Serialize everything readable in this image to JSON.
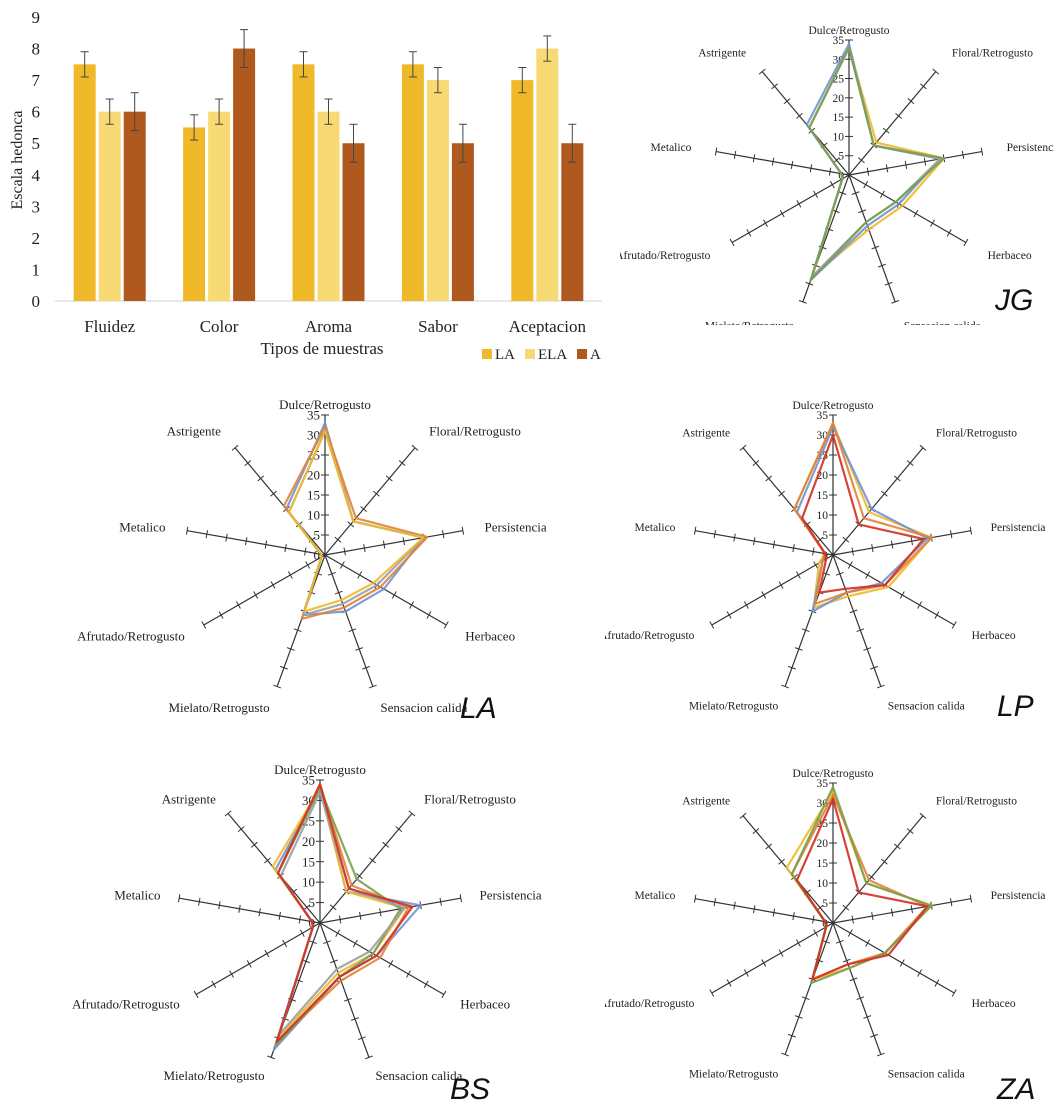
{
  "chart_data": [
    {
      "type": "bar",
      "categories": [
        "Fluidez",
        "Color",
        "Aroma",
        "Sabor",
        "Aceptacion"
      ],
      "xlabel": "Tipos de muestras",
      "ylabel": "Escala hedonca",
      "ylim": [
        0,
        9
      ],
      "yticks": [
        0,
        1,
        2,
        3,
        4,
        5,
        6,
        7,
        8,
        9
      ],
      "grid": false,
      "legend_position": "bottom-right",
      "series": [
        {
          "name": "LA",
          "color": "#f0b92a",
          "values": [
            7.5,
            5.5,
            7.5,
            7.5,
            7.0
          ],
          "errors": [
            0.4,
            0.4,
            0.4,
            0.4,
            0.4
          ]
        },
        {
          "name": "ELA",
          "color": "#f7da74",
          "values": [
            6.0,
            6.0,
            6.0,
            7.0,
            8.0
          ],
          "errors": [
            0.4,
            0.4,
            0.4,
            0.4,
            0.4
          ]
        },
        {
          "name": "A",
          "color": "#b0591f",
          "values": [
            6.0,
            8.0,
            5.0,
            5.0,
            5.0
          ],
          "errors": [
            0.6,
            0.6,
            0.6,
            0.6,
            0.6
          ]
        }
      ]
    },
    {
      "type": "radar",
      "tag": "JG",
      "axes": [
        "Dulce/Retrogusto",
        "Floral/Retrogusto",
        "Persistencia",
        "Herbaceo",
        "Sensacion calida",
        "Mielato/Retrogusto",
        "Afrutado/Retrogusto",
        "Metalico",
        "Astrigente"
      ],
      "rticks": [
        0,
        5,
        10,
        15,
        20,
        25,
        30,
        35
      ],
      "rmax": 35,
      "series": [
        {
          "color": "#f0b92a",
          "values": [
            33,
            11,
            25,
            16,
            15,
            28,
            2,
            2,
            16
          ]
        },
        {
          "color": "#6f93d1",
          "values": [
            34,
            10,
            24,
            15,
            14,
            29,
            2,
            2,
            17
          ]
        },
        {
          "color": "#9aa0a6",
          "values": [
            33,
            10,
            24,
            14,
            13,
            28,
            2,
            2,
            16
          ]
        },
        {
          "color": "#7a9f4c",
          "values": [
            33,
            10,
            25,
            14,
            13,
            29,
            2,
            2,
            16
          ]
        }
      ]
    },
    {
      "type": "radar",
      "tag": "LA",
      "axes": [
        "Dulce/Retrogusto",
        "Floral/Retrogusto",
        "Persistencia",
        "Herbaceo",
        "Sensacion calida",
        "Mielato/Retrogusto",
        "Afrutado/Retrogusto",
        "Metalico",
        "Astrigente"
      ],
      "rticks": [
        0,
        5,
        10,
        15,
        20,
        25,
        30,
        35
      ],
      "rmax": 35,
      "series": [
        {
          "color": "#6f93d1",
          "values": [
            33,
            11,
            25,
            17,
            15,
            16,
            1,
            1,
            15
          ]
        },
        {
          "color": "#e0823a",
          "values": [
            32,
            12,
            26,
            16,
            14,
            17,
            1,
            1,
            16
          ]
        },
        {
          "color": "#9aa0a6",
          "values": [
            31,
            11,
            25,
            15,
            13,
            16,
            1,
            1,
            14
          ]
        },
        {
          "color": "#f0b92a",
          "values": [
            31,
            11,
            25,
            14,
            12,
            15,
            1,
            1,
            14
          ]
        }
      ]
    },
    {
      "type": "radar",
      "tag": "LP",
      "axes": [
        "Dulce/Retrogusto",
        "Floral/Retrogusto",
        "Persistencia",
        "Herbaceo",
        "Sensacion calida",
        "Mielato/Retrogusto",
        "Afrutado/Retrogusto",
        "Metalico",
        "Astrigente"
      ],
      "rticks": [
        0,
        5,
        10,
        15,
        20,
        25,
        30,
        35
      ],
      "rmax": 35,
      "series": [
        {
          "color": "#f0b92a",
          "values": [
            33,
            14,
            25,
            16,
            11,
            14,
            4,
            2,
            15
          ]
        },
        {
          "color": "#6f93d1",
          "values": [
            32,
            15,
            24,
            14,
            10,
            15,
            3,
            2,
            14
          ]
        },
        {
          "color": "#e0823a",
          "values": [
            33,
            12,
            25,
            15,
            10,
            13,
            3,
            2,
            15
          ]
        },
        {
          "color": "#d42f22",
          "values": [
            30,
            10,
            23,
            15,
            9,
            10,
            2,
            2,
            12
          ]
        }
      ]
    },
    {
      "type": "radar",
      "tag": "BS",
      "axes": [
        "Dulce/Retrogusto",
        "Floral/Retrogusto",
        "Persistencia",
        "Herbaceo",
        "Sensacion calida",
        "Mielato/Retrogusto",
        "Afrutado/Retrogusto",
        "Metalico",
        "Astrigente"
      ],
      "rticks": [
        0,
        5,
        10,
        15,
        20,
        25,
        30,
        35
      ],
      "rmax": 35,
      "series": [
        {
          "color": "#6f93d1",
          "values": [
            33,
            10,
            25,
            16,
            14,
            33,
            2,
            2,
            17
          ]
        },
        {
          "color": "#e0823a",
          "values": [
            34,
            12,
            22,
            17,
            15,
            31,
            2,
            2,
            16
          ]
        },
        {
          "color": "#f0b92a",
          "values": [
            33,
            10,
            21,
            15,
            13,
            30,
            2,
            2,
            18
          ]
        },
        {
          "color": "#7a9f4c",
          "values": [
            33,
            14,
            20,
            15,
            14,
            32,
            2,
            2,
            16
          ]
        },
        {
          "color": "#9aa0a6",
          "values": [
            32,
            11,
            21,
            14,
            12,
            29,
            2,
            2,
            15
          ]
        },
        {
          "color": "#d42f22",
          "values": [
            34,
            11,
            23,
            16,
            14,
            31,
            2,
            2,
            16
          ]
        }
      ]
    },
    {
      "type": "radar",
      "tag": "ZA",
      "axes": [
        "Dulce/Retrogusto",
        "Floral/Retrogusto",
        "Persistencia",
        "Herbaceo",
        "Sensacion calida",
        "Mielato/Retrogusto",
        "Afrutado/Retrogusto",
        "Metalico",
        "Astrigente"
      ],
      "rticks": [
        0,
        5,
        10,
        15,
        20,
        25,
        30,
        35
      ],
      "rmax": 35,
      "series": [
        {
          "color": "#f0b92a",
          "values": [
            33,
            13,
            25,
            15,
            12,
            15,
            2,
            2,
            18
          ]
        },
        {
          "color": "#e0823a",
          "values": [
            32,
            14,
            24,
            15,
            11,
            15,
            2,
            2,
            16
          ]
        },
        {
          "color": "#7a9f4c",
          "values": [
            34,
            13,
            25,
            15,
            12,
            16,
            2,
            2,
            16
          ]
        },
        {
          "color": "#d42f22",
          "values": [
            31,
            10,
            24,
            16,
            11,
            15,
            2,
            2,
            14
          ]
        }
      ]
    }
  ]
}
